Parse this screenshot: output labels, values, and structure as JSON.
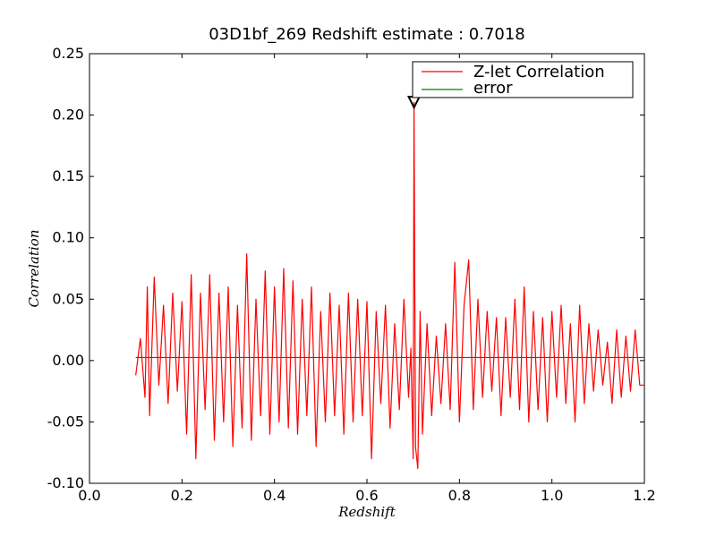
{
  "chart_data": {
    "type": "line",
    "title": "03D1bf_269 Redshift estimate : 0.7018",
    "xlabel": "Redshift",
    "ylabel": "Correlation",
    "xlim": [
      0.0,
      1.2
    ],
    "ylim": [
      -0.1,
      0.25
    ],
    "x_ticks": [
      "0.0",
      "0.2",
      "0.4",
      "0.6",
      "0.8",
      "1.0",
      "1.2"
    ],
    "y_ticks": [
      "-0.10",
      "-0.05",
      "0.00",
      "0.05",
      "0.10",
      "0.15",
      "0.20",
      "0.25"
    ],
    "grid": false,
    "legend_position": "top-right",
    "series": [
      {
        "name": "Z-let Correlation",
        "color": "#ff0000",
        "x": [
          0.1,
          0.11,
          0.12,
          0.125,
          0.13,
          0.14,
          0.15,
          0.16,
          0.17,
          0.18,
          0.19,
          0.2,
          0.21,
          0.22,
          0.23,
          0.24,
          0.25,
          0.26,
          0.27,
          0.28,
          0.29,
          0.3,
          0.31,
          0.32,
          0.33,
          0.34,
          0.35,
          0.36,
          0.37,
          0.38,
          0.39,
          0.4,
          0.41,
          0.42,
          0.43,
          0.44,
          0.45,
          0.46,
          0.47,
          0.48,
          0.49,
          0.5,
          0.51,
          0.52,
          0.53,
          0.54,
          0.55,
          0.56,
          0.57,
          0.58,
          0.59,
          0.6,
          0.61,
          0.62,
          0.63,
          0.64,
          0.65,
          0.66,
          0.67,
          0.68,
          0.69,
          0.695,
          0.7,
          0.7018,
          0.705,
          0.71,
          0.715,
          0.72,
          0.73,
          0.74,
          0.75,
          0.76,
          0.77,
          0.78,
          0.79,
          0.8,
          0.81,
          0.82,
          0.83,
          0.84,
          0.85,
          0.86,
          0.87,
          0.88,
          0.89,
          0.9,
          0.91,
          0.92,
          0.93,
          0.94,
          0.95,
          0.96,
          0.97,
          0.98,
          0.99,
          1.0,
          1.01,
          1.02,
          1.03,
          1.04,
          1.05,
          1.06,
          1.07,
          1.08,
          1.09,
          1.1,
          1.11,
          1.12,
          1.13,
          1.14,
          1.15,
          1.16,
          1.17,
          1.18,
          1.19,
          1.2
        ],
        "y": [
          -0.012,
          0.018,
          -0.03,
          0.06,
          -0.045,
          0.068,
          -0.02,
          0.045,
          -0.035,
          0.055,
          -0.025,
          0.048,
          -0.06,
          0.07,
          -0.08,
          0.055,
          -0.04,
          0.07,
          -0.065,
          0.055,
          -0.05,
          0.06,
          -0.07,
          0.045,
          -0.055,
          0.087,
          -0.065,
          0.05,
          -0.045,
          0.073,
          -0.06,
          0.06,
          -0.05,
          0.075,
          -0.055,
          0.065,
          -0.06,
          0.05,
          -0.045,
          0.06,
          -0.07,
          0.04,
          -0.05,
          0.055,
          -0.045,
          0.045,
          -0.06,
          0.055,
          -0.05,
          0.05,
          -0.045,
          0.048,
          -0.08,
          0.04,
          -0.035,
          0.045,
          -0.055,
          0.03,
          -0.04,
          0.05,
          -0.03,
          0.01,
          -0.08,
          0.2105,
          -0.07,
          -0.088,
          0.04,
          -0.06,
          0.03,
          -0.045,
          0.02,
          -0.035,
          0.03,
          -0.04,
          0.08,
          -0.05,
          0.045,
          0.082,
          -0.04,
          0.05,
          -0.03,
          0.04,
          -0.025,
          0.035,
          -0.045,
          0.035,
          -0.03,
          0.05,
          -0.04,
          0.06,
          -0.05,
          0.04,
          -0.04,
          0.035,
          -0.05,
          0.04,
          -0.03,
          0.045,
          -0.035,
          0.03,
          -0.05,
          0.045,
          -0.035,
          0.03,
          -0.025,
          0.025,
          -0.02,
          0.015,
          -0.035,
          0.025,
          -0.03,
          0.02,
          -0.025,
          0.025,
          -0.02,
          -0.02
        ]
      },
      {
        "name": "error",
        "color": "#008000",
        "x": [
          0.1,
          1.2
        ],
        "y": [
          0.0025,
          0.0025
        ]
      }
    ],
    "peak_marker": {
      "x": 0.7018,
      "y": 0.2105,
      "symbol": "downward-triangle"
    }
  }
}
